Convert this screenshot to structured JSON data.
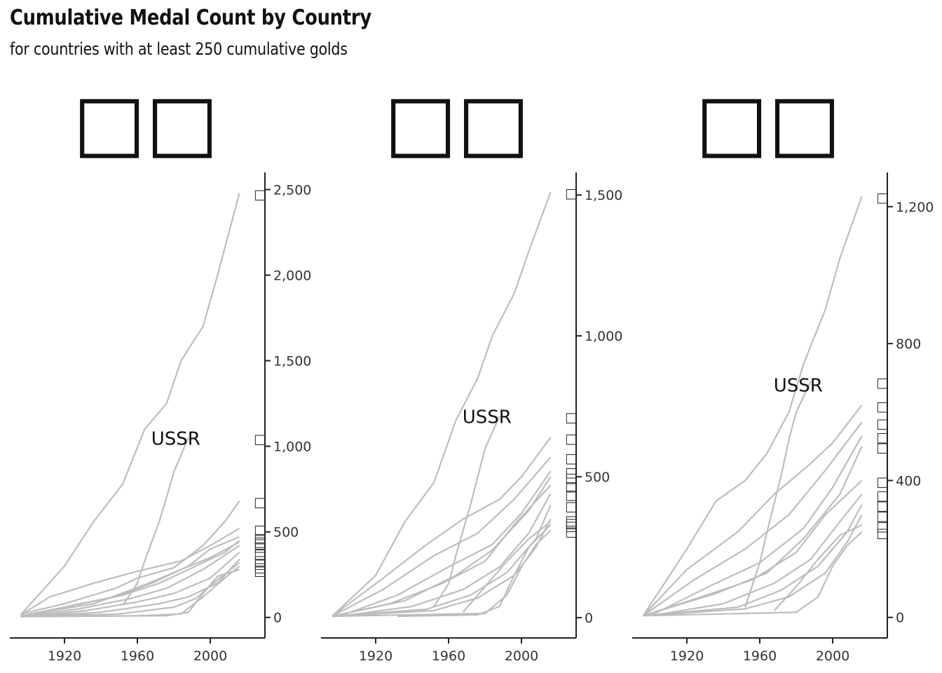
{
  "title": "Cumulative Medal Count by Country",
  "subtitle": "for countries with at least 250 cumulative golds",
  "colors": {
    "lines": "#bdbdbd",
    "axis": "#222222",
    "text": "#111111"
  },
  "chart_data": [
    {
      "type": "line",
      "facet_label": "□□",
      "annotation": {
        "text": "USSR",
        "x": 1988,
        "y": 1050
      },
      "xlim": [
        1890,
        2030
      ],
      "xticks": [
        1920,
        1960,
        2000
      ],
      "ylim": [
        -120,
        2600
      ],
      "yticks": [
        0,
        500,
        1000,
        1500,
        2000,
        2500
      ],
      "y_axis_side": "right",
      "end_labels": "□",
      "series": [
        {
          "x": [
            1896,
            1920,
            1936,
            1952,
            1964,
            1976,
            1984,
            1996,
            2004,
            2016
          ],
          "y": [
            15,
            300,
            560,
            780,
            1100,
            1250,
            1500,
            1700,
            2000,
            2480
          ]
        },
        {
          "x": [
            1952,
            1960,
            1964,
            1972,
            1976,
            1980,
            1988
          ],
          "y": [
            70,
            200,
            330,
            560,
            700,
            850,
            1050
          ]
        },
        {
          "x": [
            1896,
            1920,
            1948,
            1960,
            1980,
            1996,
            2008,
            2016
          ],
          "y": [
            20,
            80,
            170,
            230,
            290,
            420,
            560,
            680
          ]
        },
        {
          "x": [
            1896,
            1912,
            1936,
            1960,
            1984,
            2000,
            2016
          ],
          "y": [
            15,
            120,
            200,
            270,
            330,
            420,
            520
          ]
        },
        {
          "x": [
            1896,
            1920,
            1948,
            1968,
            1988,
            2000,
            2016
          ],
          "y": [
            10,
            60,
            120,
            200,
            300,
            400,
            470
          ]
        },
        {
          "x": [
            1900,
            1924,
            1952,
            1972,
            1992,
            2008,
            2016
          ],
          "y": [
            10,
            70,
            130,
            200,
            300,
            380,
            450
          ]
        },
        {
          "x": [
            1896,
            1936,
            1964,
            1984,
            2000,
            2016
          ],
          "y": [
            10,
            80,
            190,
            280,
            350,
            440
          ]
        },
        {
          "x": [
            1896,
            1928,
            1956,
            1976,
            1996,
            2016
          ],
          "y": [
            5,
            50,
            110,
            170,
            280,
            420
          ]
        },
        {
          "x": [
            1900,
            1932,
            1960,
            1980,
            2000,
            2016
          ],
          "y": [
            5,
            40,
            90,
            140,
            230,
            380
          ]
        },
        {
          "x": [
            1896,
            1940,
            1972,
            1988,
            2004,
            2016
          ],
          "y": [
            5,
            30,
            80,
            120,
            200,
            340
          ]
        },
        {
          "x": [
            1896,
            1950,
            1980,
            1992,
            2004,
            2016
          ],
          "y": [
            5,
            20,
            60,
            110,
            220,
            320
          ]
        },
        {
          "x": [
            1896,
            1960,
            1984,
            1996,
            2008,
            2016
          ],
          "y": [
            5,
            10,
            20,
            120,
            230,
            300
          ]
        },
        {
          "x": [
            1896,
            1976,
            1988,
            1996,
            2004,
            2016
          ],
          "y": [
            5,
            10,
            30,
            140,
            240,
            280
          ]
        }
      ]
    },
    {
      "type": "line",
      "facet_label": "□□",
      "annotation": {
        "text": "USSR",
        "x": 1988,
        "y": 715
      },
      "xlim": [
        1890,
        2030
      ],
      "xticks": [
        1920,
        1960,
        2000
      ],
      "ylim": [
        -72,
        1580
      ],
      "yticks": [
        0,
        500,
        1000,
        1500
      ],
      "y_axis_side": "right",
      "end_labels": "□",
      "series": [
        {
          "x": [
            1896,
            1920,
            1936,
            1952,
            1964,
            1976,
            1984,
            1996,
            2004,
            2016
          ],
          "y": [
            5,
            150,
            340,
            480,
            700,
            850,
            1000,
            1150,
            1300,
            1510
          ]
        },
        {
          "x": [
            1952,
            1960,
            1964,
            1972,
            1976,
            1980,
            1988
          ],
          "y": [
            40,
            120,
            220,
            400,
            500,
            600,
            715
          ]
        },
        {
          "x": [
            1896,
            1920,
            1948,
            1968,
            1988,
            2000,
            2016
          ],
          "y": [
            5,
            120,
            260,
            350,
            420,
            500,
            640
          ]
        },
        {
          "x": [
            1896,
            1924,
            1952,
            1976,
            1996,
            2016
          ],
          "y": [
            5,
            100,
            220,
            300,
            420,
            570
          ]
        },
        {
          "x": [
            1900,
            1932,
            1960,
            1984,
            2000,
            2016
          ],
          "y": [
            5,
            80,
            180,
            260,
            370,
            520
          ]
        },
        {
          "x": [
            1896,
            1936,
            1964,
            1984,
            2004,
            2016
          ],
          "y": [
            5,
            60,
            150,
            240,
            380,
            500
          ]
        },
        {
          "x": [
            1896,
            1928,
            1956,
            1980,
            1996,
            2016
          ],
          "y": [
            5,
            50,
            120,
            200,
            330,
            470
          ]
        },
        {
          "x": [
            1900,
            1940,
            1968,
            1988,
            2004,
            2016
          ],
          "y": [
            5,
            40,
            100,
            180,
            300,
            440
          ]
        },
        {
          "x": [
            1896,
            1948,
            1972,
            1992,
            2008,
            2016
          ],
          "y": [
            5,
            30,
            80,
            160,
            280,
            400
          ]
        },
        {
          "x": [
            1896,
            1952,
            1976,
            1996,
            2008,
            2016
          ],
          "y": [
            5,
            25,
            70,
            150,
            250,
            350
          ]
        },
        {
          "x": [
            1968,
            1980,
            1992,
            2004,
            2016
          ],
          "y": [
            20,
            110,
            200,
            280,
            340
          ]
        },
        {
          "x": [
            1932,
            1976,
            1988,
            1996,
            2004,
            2016
          ],
          "y": [
            5,
            10,
            40,
            150,
            250,
            330
          ]
        },
        {
          "x": [
            1896,
            1980,
            1992,
            2000,
            2008,
            2016
          ],
          "y": [
            5,
            15,
            80,
            180,
            260,
            310
          ]
        }
      ]
    },
    {
      "type": "line",
      "facet_label": "□□",
      "annotation": {
        "text": "USSR",
        "x": 1988,
        "y": 680
      },
      "xlim": [
        1890,
        2030
      ],
      "xticks": [
        1920,
        1960,
        2000
      ],
      "ylim": [
        -60,
        1300
      ],
      "yticks": [
        0,
        400,
        800,
        1200
      ],
      "y_axis_side": "right",
      "end_labels": "□",
      "series": [
        {
          "x": [
            1896,
            1920,
            1936,
            1952,
            1964,
            1976,
            1984,
            1996,
            2004,
            2016
          ],
          "y": [
            5,
            200,
            340,
            400,
            480,
            600,
            740,
            900,
            1050,
            1230
          ]
        },
        {
          "x": [
            1952,
            1960,
            1964,
            1972,
            1976,
            1980,
            1988
          ],
          "y": [
            30,
            160,
            250,
            420,
            520,
            600,
            690
          ]
        },
        {
          "x": [
            1896,
            1920,
            1948,
            1968,
            1988,
            2000,
            2016
          ],
          "y": [
            5,
            140,
            250,
            360,
            450,
            510,
            620
          ]
        },
        {
          "x": [
            1896,
            1924,
            1952,
            1976,
            1996,
            2016
          ],
          "y": [
            5,
            110,
            200,
            300,
            430,
            570
          ]
        },
        {
          "x": [
            1900,
            1932,
            1960,
            1984,
            2000,
            2016
          ],
          "y": [
            5,
            90,
            160,
            260,
            380,
            530
          ]
        },
        {
          "x": [
            1896,
            1936,
            1964,
            1984,
            2004,
            2016
          ],
          "y": [
            5,
            70,
            130,
            230,
            360,
            500
          ]
        },
        {
          "x": [
            1896,
            1928,
            1956,
            1980,
            1996,
            2016
          ],
          "y": [
            5,
            60,
            110,
            190,
            300,
            400
          ]
        },
        {
          "x": [
            1900,
            1940,
            1968,
            1988,
            2004,
            2016
          ],
          "y": [
            5,
            40,
            100,
            170,
            280,
            360
          ]
        },
        {
          "x": [
            1896,
            1948,
            1972,
            1992,
            2008,
            2016
          ],
          "y": [
            5,
            30,
            80,
            150,
            250,
            330
          ]
        },
        {
          "x": [
            1896,
            1952,
            1976,
            1996,
            2008,
            2016
          ],
          "y": [
            5,
            25,
            60,
            130,
            220,
            300
          ]
        },
        {
          "x": [
            1968,
            1980,
            1992,
            2004,
            2016
          ],
          "y": [
            20,
            90,
            170,
            240,
            270
          ]
        },
        {
          "x": [
            1896,
            1980,
            1992,
            2000,
            2008,
            2016
          ],
          "y": [
            5,
            15,
            60,
            150,
            210,
            250
          ]
        }
      ]
    }
  ]
}
